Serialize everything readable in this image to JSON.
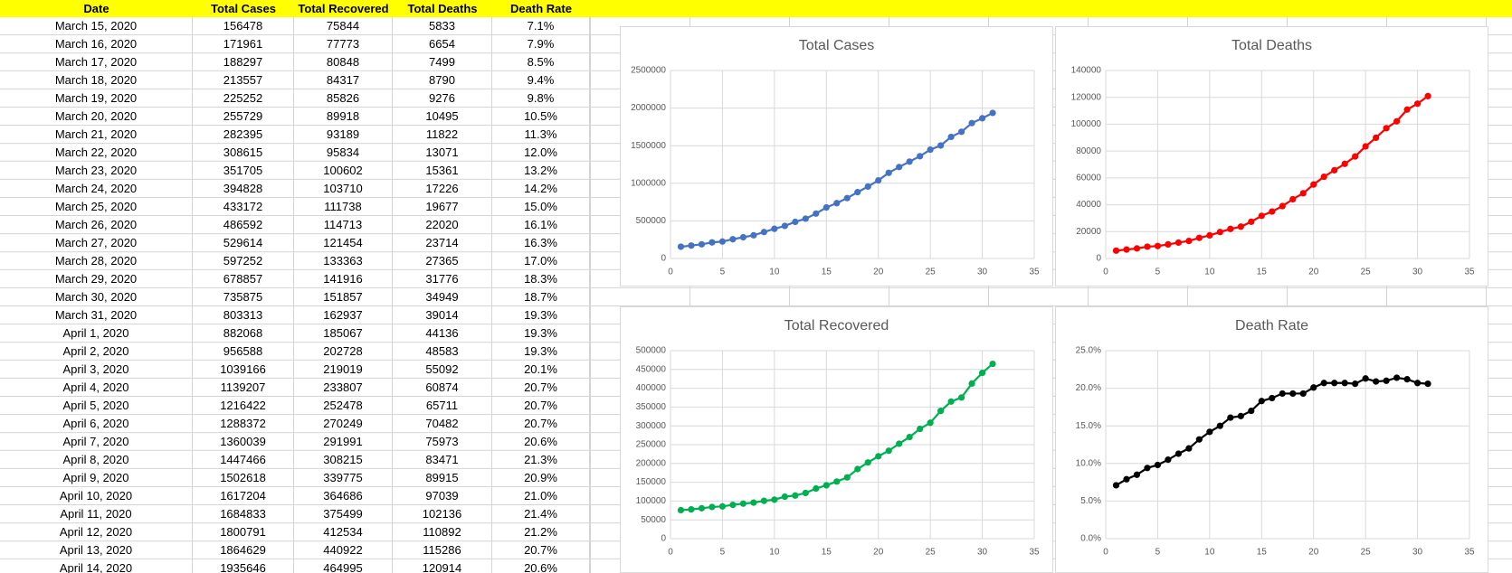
{
  "table": {
    "columns": [
      "Date",
      "Total Cases",
      "Total Recovered",
      "Total Deaths",
      "Death Rate"
    ],
    "rows": [
      [
        "March 15, 2020",
        156478,
        75844,
        5833,
        "7.1%"
      ],
      [
        "March 16, 2020",
        171961,
        77773,
        6654,
        "7.9%"
      ],
      [
        "March 17, 2020",
        188297,
        80848,
        7499,
        "8.5%"
      ],
      [
        "March 18, 2020",
        213557,
        84317,
        8790,
        "9.4%"
      ],
      [
        "March 19, 2020",
        225252,
        85826,
        9276,
        "9.8%"
      ],
      [
        "March 20, 2020",
        255729,
        89918,
        10495,
        "10.5%"
      ],
      [
        "March 21, 2020",
        282395,
        93189,
        11822,
        "11.3%"
      ],
      [
        "March 22, 2020",
        308615,
        95834,
        13071,
        "12.0%"
      ],
      [
        "March 23, 2020",
        351705,
        100602,
        15361,
        "13.2%"
      ],
      [
        "March 24, 2020",
        394828,
        103710,
        17226,
        "14.2%"
      ],
      [
        "March 25, 2020",
        433172,
        111738,
        19677,
        "15.0%"
      ],
      [
        "March 26, 2020",
        486592,
        114713,
        22020,
        "16.1%"
      ],
      [
        "March 27, 2020",
        529614,
        121454,
        23714,
        "16.3%"
      ],
      [
        "March 28, 2020",
        597252,
        133363,
        27365,
        "17.0%"
      ],
      [
        "March 29, 2020",
        678857,
        141916,
        31776,
        "18.3%"
      ],
      [
        "March 30, 2020",
        735875,
        151857,
        34949,
        "18.7%"
      ],
      [
        "March 31, 2020",
        803313,
        162937,
        39014,
        "19.3%"
      ],
      [
        "April 1, 2020",
        882068,
        185067,
        44136,
        "19.3%"
      ],
      [
        "April 2, 2020",
        956588,
        202728,
        48583,
        "19.3%"
      ],
      [
        "April 3, 2020",
        1039166,
        219019,
        55092,
        "20.1%"
      ],
      [
        "April 4, 2020",
        1139207,
        233807,
        60874,
        "20.7%"
      ],
      [
        "April 5, 2020",
        1216422,
        252478,
        65711,
        "20.7%"
      ],
      [
        "April 6, 2020",
        1288372,
        270249,
        70482,
        "20.7%"
      ],
      [
        "April 7, 2020",
        1360039,
        291991,
        75973,
        "20.6%"
      ],
      [
        "April 8, 2020",
        1447466,
        308215,
        83471,
        "21.3%"
      ],
      [
        "April 9, 2020",
        1502618,
        339775,
        89915,
        "20.9%"
      ],
      [
        "April 10, 2020",
        1617204,
        364686,
        97039,
        "21.0%"
      ],
      [
        "April 11, 2020",
        1684833,
        375499,
        102136,
        "21.4%"
      ],
      [
        "April 12, 2020",
        1800791,
        412534,
        110892,
        "21.2%"
      ],
      [
        "April 13, 2020",
        1864629,
        440922,
        115286,
        "20.7%"
      ],
      [
        "April 14, 2020",
        1935646,
        464995,
        120914,
        "20.6%"
      ]
    ]
  },
  "chart_data": [
    {
      "type": "line",
      "title": "Total Cases",
      "color": "#4472c4",
      "grid": true,
      "x": [
        1,
        2,
        3,
        4,
        5,
        6,
        7,
        8,
        9,
        10,
        11,
        12,
        13,
        14,
        15,
        16,
        17,
        18,
        19,
        20,
        21,
        22,
        23,
        24,
        25,
        26,
        27,
        28,
        29,
        30,
        31
      ],
      "values": [
        156478,
        171961,
        188297,
        213557,
        225252,
        255729,
        282395,
        308615,
        351705,
        394828,
        433172,
        486592,
        529614,
        597252,
        678857,
        735875,
        803313,
        882068,
        956588,
        1039166,
        1139207,
        1216422,
        1288372,
        1360039,
        1447466,
        1502618,
        1617204,
        1684833,
        1800791,
        1864629,
        1935646
      ],
      "xlim": [
        0,
        35
      ],
      "xticks": [
        0,
        5,
        10,
        15,
        20,
        25,
        30,
        35
      ],
      "ylim": [
        0,
        2500000
      ],
      "yticks": [
        0,
        500000,
        1000000,
        1500000,
        2000000,
        2500000
      ]
    },
    {
      "type": "line",
      "title": "Total Deaths",
      "color": "#ff0000",
      "grid": true,
      "x": [
        1,
        2,
        3,
        4,
        5,
        6,
        7,
        8,
        9,
        10,
        11,
        12,
        13,
        14,
        15,
        16,
        17,
        18,
        19,
        20,
        21,
        22,
        23,
        24,
        25,
        26,
        27,
        28,
        29,
        30,
        31
      ],
      "values": [
        5833,
        6654,
        7499,
        8790,
        9276,
        10495,
        11822,
        13071,
        15361,
        17226,
        19677,
        22020,
        23714,
        27365,
        31776,
        34949,
        39014,
        44136,
        48583,
        55092,
        60874,
        65711,
        70482,
        75973,
        83471,
        89915,
        97039,
        102136,
        110892,
        115286,
        120914
      ],
      "xlim": [
        0,
        35
      ],
      "xticks": [
        0,
        5,
        10,
        15,
        20,
        25,
        30,
        35
      ],
      "ylim": [
        0,
        140000
      ],
      "yticks": [
        0,
        20000,
        40000,
        60000,
        80000,
        100000,
        120000,
        140000
      ]
    },
    {
      "type": "line",
      "title": "Total Recovered",
      "color": "#00b050",
      "grid": true,
      "x": [
        1,
        2,
        3,
        4,
        5,
        6,
        7,
        8,
        9,
        10,
        11,
        12,
        13,
        14,
        15,
        16,
        17,
        18,
        19,
        20,
        21,
        22,
        23,
        24,
        25,
        26,
        27,
        28,
        29,
        30,
        31
      ],
      "values": [
        75844,
        77773,
        80848,
        84317,
        85826,
        89918,
        93189,
        95834,
        100602,
        103710,
        111738,
        114713,
        121454,
        133363,
        141916,
        151857,
        162937,
        185067,
        202728,
        219019,
        233807,
        252478,
        270249,
        291991,
        308215,
        339775,
        364686,
        375499,
        412534,
        440922,
        464995
      ],
      "xlim": [
        0,
        35
      ],
      "xticks": [
        0,
        5,
        10,
        15,
        20,
        25,
        30,
        35
      ],
      "ylim": [
        0,
        500000
      ],
      "yticks": [
        0,
        50000,
        100000,
        150000,
        200000,
        250000,
        300000,
        350000,
        400000,
        450000,
        500000
      ]
    },
    {
      "type": "line",
      "title": "Death Rate",
      "color": "#000000",
      "grid": true,
      "x": [
        1,
        2,
        3,
        4,
        5,
        6,
        7,
        8,
        9,
        10,
        11,
        12,
        13,
        14,
        15,
        16,
        17,
        18,
        19,
        20,
        21,
        22,
        23,
        24,
        25,
        26,
        27,
        28,
        29,
        30,
        31
      ],
      "values": [
        7.1,
        7.9,
        8.5,
        9.4,
        9.8,
        10.5,
        11.3,
        12.0,
        13.2,
        14.2,
        15.0,
        16.1,
        16.3,
        17.0,
        18.3,
        18.7,
        19.3,
        19.3,
        19.3,
        20.1,
        20.7,
        20.7,
        20.7,
        20.6,
        21.3,
        20.9,
        21.0,
        21.4,
        21.2,
        20.7,
        20.6
      ],
      "xlim": [
        0,
        35
      ],
      "xticks": [
        0,
        5,
        10,
        15,
        20,
        25,
        30,
        35
      ],
      "ylim": [
        0,
        25
      ],
      "yticks": [
        {
          "value": 0,
          "label": "0.0%"
        },
        {
          "value": 5,
          "label": "5.0%"
        },
        {
          "value": 10,
          "label": "10.0%"
        },
        {
          "value": 15,
          "label": "15.0%"
        },
        {
          "value": 20,
          "label": "20.0%"
        },
        {
          "value": 25,
          "label": "25.0%"
        }
      ]
    }
  ]
}
